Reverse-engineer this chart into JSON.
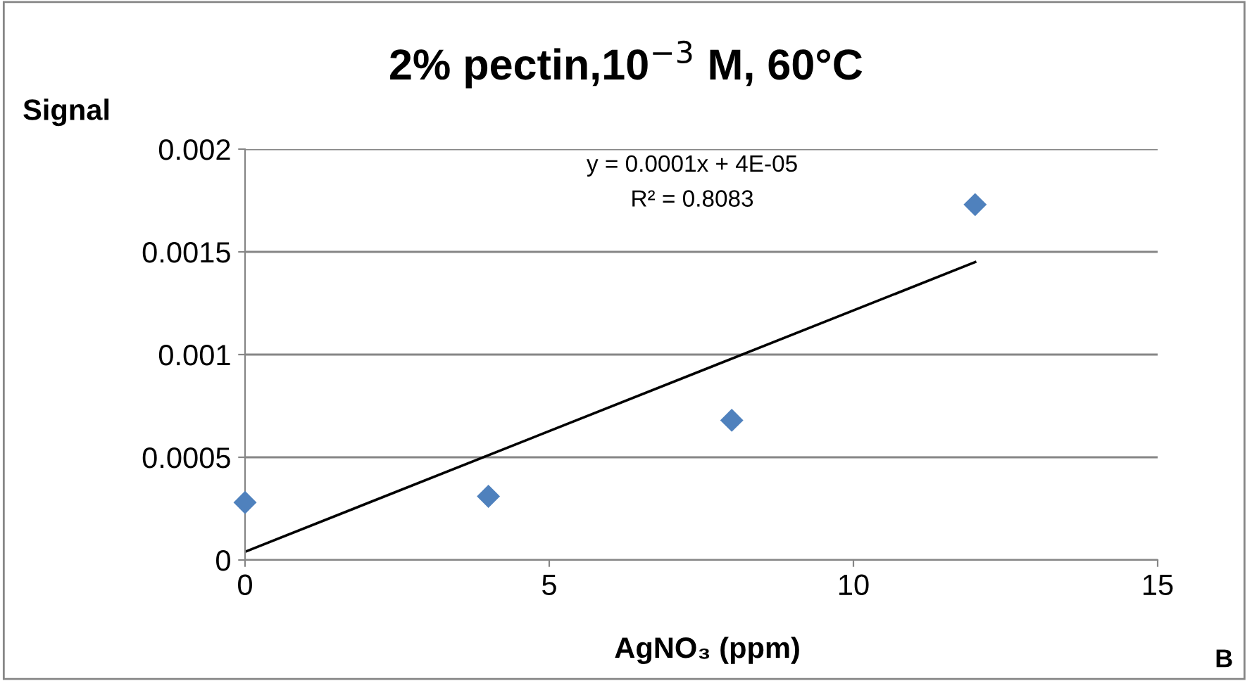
{
  "chart_data": {
    "type": "scatter",
    "title": "2% pectin,10$^{−3}$ M, 60°C",
    "xlabel": "AgNO₃ (ppm)",
    "ylabel": "Signal",
    "series": [
      {
        "color": "#4f81bd",
        "marker": "diamond",
        "x": [
          0,
          4,
          8,
          12
        ],
        "values": [
          0.00028,
          0.00031,
          0.00068,
          0.00173
        ]
      },
      {
        "type": "line",
        "color": "#000000",
        "marker": "none",
        "line_style": "solid",
        "x": [
          0,
          12
        ],
        "values": [
          4e-05,
          0.00145
        ]
      }
    ],
    "xlim": [
      0,
      15
    ],
    "xticks": [
      0,
      5,
      10,
      15
    ],
    "ylim": [
      0,
      0.002
    ],
    "yticks": [
      0,
      0.0005,
      0.001,
      0.0015,
      0.002
    ],
    "grid": "y",
    "legend": false,
    "annotations": [
      "y = 0.0001x + 4E-05",
      "R² = 0.8083",
      "B"
    ]
  }
}
